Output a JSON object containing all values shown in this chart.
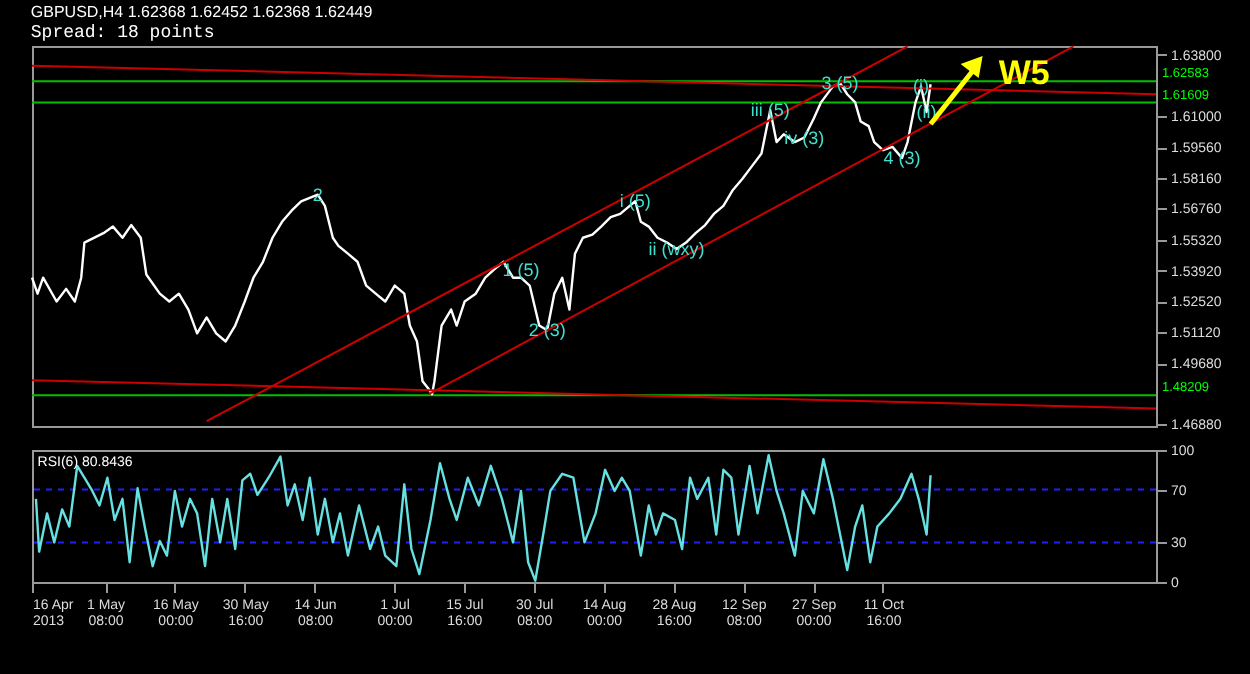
{
  "chart_data": [
    {
      "type": "line",
      "title": "GBPUSD,H4  1.62368 1.62452 1.62368 1.62449",
      "subtitle": "Spread: 18 points",
      "xlim": [
        "2013-04-16T00:00",
        "2013-12-08T00:00"
      ],
      "ylim": [
        1.468,
        1.642
      ],
      "yticks": [
        {
          "value": 1.4688,
          "label": "1.46880"
        },
        {
          "value": 1.4968,
          "label": "1.49680"
        },
        {
          "value": 1.5112,
          "label": "1.51120"
        },
        {
          "value": 1.5252,
          "label": "1.52520"
        },
        {
          "value": 1.5392,
          "label": "1.53920"
        },
        {
          "value": 1.5532,
          "label": "1.55320"
        },
        {
          "value": 1.5676,
          "label": "1.56760"
        },
        {
          "value": 1.5816,
          "label": "1.58160"
        },
        {
          "value": 1.5956,
          "label": "1.59560"
        },
        {
          "value": 1.61,
          "label": "1.61000"
        },
        {
          "value": 1.638,
          "label": "1.63800"
        }
      ],
      "tick_labels": "y",
      "series": [
        {
          "color": "#ffffff",
          "x": [
            "2013-04-16T00:00",
            "2013-04-17T04:00",
            "2013-04-18T08:00",
            "2013-04-21T04:00",
            "2013-04-23T04:00",
            "2013-04-25T00:00",
            "2013-04-26T08:00",
            "2013-04-27T00:00",
            "2013-05-01T00:00",
            "2013-05-03T00:00",
            "2013-05-05T00:00",
            "2013-05-06T20:00",
            "2013-05-08T20:00",
            "2013-05-10T00:00",
            "2013-05-12T20:00",
            "2013-05-14T20:00",
            "2013-05-16T20:00",
            "2013-05-18T20:00",
            "2013-05-20T16:00",
            "2013-05-22T16:00",
            "2013-05-24T16:00",
            "2013-05-26T16:00",
            "2013-05-28T16:00",
            "2013-05-30T16:00",
            "2013-06-01T12:00",
            "2013-06-03T12:00",
            "2013-06-05T12:00",
            "2013-06-07T12:00",
            "2013-06-09T12:00",
            "2013-06-11T12:00",
            "2013-06-15T00:00",
            "2013-06-16T12:00",
            "2013-06-18T04:00",
            "2013-06-19T08:00",
            "2013-06-21T08:00",
            "2013-06-23T08:00",
            "2013-06-25T04:00",
            "2013-06-27T04:00",
            "2013-06-29T04:00",
            "2013-07-01T04:00",
            "2013-07-03T04:00",
            "2013-07-04T08:00",
            "2013-07-05T20:00",
            "2013-07-07T00:00",
            "2013-07-08T08:00",
            "2013-07-09T00:00",
            "2013-07-09T12:00",
            "2013-07-11T00:00",
            "2013-07-13T00:00",
            "2013-07-14T04:00",
            "2013-07-15T20:00",
            "2013-07-18T04:00",
            "2013-07-20T04:00",
            "2013-07-22T00:00",
            "2013-07-24T00:00",
            "2013-07-26T00:00",
            "2013-07-27T16:00",
            "2013-07-29T12:00",
            "2013-07-31T12:00",
            "2013-08-02T04:00",
            "2013-08-03T16:00",
            "2013-08-05T08:00",
            "2013-08-06T20:00",
            "2013-08-08T00:00",
            "2013-08-09T16:00",
            "2013-08-11T16:00",
            "2013-08-13T12:00",
            "2013-08-15T12:00",
            "2013-08-17T12:00",
            "2013-08-19T12:00",
            "2013-08-20T16:00",
            "2013-08-21T20:00",
            "2013-08-23T12:00",
            "2013-08-25T08:00",
            "2013-08-27T08:00",
            "2013-08-29T08:00",
            "2013-08-31T08:00",
            "2013-09-02T08:00",
            "2013-09-04T08:00",
            "2013-09-06T04:00",
            "2013-09-08T04:00",
            "2013-09-10T04:00",
            "2013-09-12T04:00",
            "2013-09-14T04:00",
            "2013-09-16T04:00",
            "2013-09-18T00:00",
            "2013-09-19T08:00",
            "2013-09-20T20:00",
            "2013-09-23T04:00",
            "2013-09-25T04:00",
            "2013-09-27T04:00",
            "2013-09-28T16:00",
            "2013-10-01T04:00",
            "2013-10-02T16:00",
            "2013-10-04T04:00",
            "2013-10-05T20:00",
            "2013-10-07T00:00",
            "2013-10-08T16:00",
            "2013-10-09T20:00",
            "2013-10-11T16:00",
            "2013-10-13T16:00",
            "2013-10-15T16:00",
            "2013-10-16T20:00",
            "2013-10-18T12:00",
            "2013-10-19T16:00",
            "2013-10-20T20:00",
            "2013-10-21T16:00"
          ],
          "values": [
            1.5359,
            1.5286,
            1.5359,
            1.525,
            1.5308,
            1.525,
            1.5359,
            1.552,
            1.5563,
            1.5593,
            1.5542,
            1.56,
            1.5542,
            1.5374,
            1.5286,
            1.525,
            1.5286,
            1.5213,
            1.5104,
            1.5177,
            1.5104,
            1.5067,
            1.514,
            1.525,
            1.5359,
            1.5432,
            1.5542,
            1.5615,
            1.5666,
            1.5709,
            1.5739,
            1.5688,
            1.5542,
            1.5505,
            1.5469,
            1.5432,
            1.5323,
            1.5286,
            1.525,
            1.5323,
            1.5286,
            1.514,
            1.5067,
            1.4885,
            1.4848,
            1.4826,
            1.4885,
            1.514,
            1.5213,
            1.514,
            1.525,
            1.5286,
            1.5359,
            1.5396,
            1.5432,
            1.5359,
            1.5359,
            1.5323,
            1.514,
            1.5118,
            1.5286,
            1.5359,
            1.5213,
            1.5469,
            1.5542,
            1.5556,
            1.5593,
            1.5636,
            1.5651,
            1.5688,
            1.5709,
            1.5615,
            1.5593,
            1.5542,
            1.552,
            1.549,
            1.552,
            1.5563,
            1.56,
            1.5651,
            1.5688,
            1.5761,
            1.5812,
            1.587,
            1.5928,
            1.6126,
            1.598,
            1.6016,
            1.598,
            1.6001,
            1.6089,
            1.6162,
            1.6235,
            1.625,
            1.6199,
            1.6162,
            1.6074,
            1.6053,
            1.598,
            1.5943,
            1.5958,
            1.5907,
            1.598,
            1.6162,
            1.6235,
            1.6118,
            1.6245
          ]
        },
        {
          "color": "#cc0000",
          "x": [
            "2013-04-16T00:00",
            "2013-12-08T00:00"
          ],
          "values": [
            1.633,
            1.6199
          ]
        },
        {
          "color": "#cc0000",
          "x": [
            "2013-04-16T00:00",
            "2013-12-08T00:00"
          ],
          "values": [
            1.489,
            1.476
          ]
        },
        {
          "color": "#cc0000",
          "x": [
            "2013-07-08T08:00",
            "2013-11-20T16:00"
          ],
          "values": [
            1.4826,
            1.6418
          ]
        },
        {
          "color": "#cc0000",
          "x": [
            "2013-05-22T16:00",
            "2013-10-16T20:00"
          ],
          "values": [
            1.4702,
            1.6418
          ]
        }
      ],
      "ref_lines": [
        {
          "axis": "y",
          "value": 1.62583,
          "label": "1.62583",
          "color": "#00c000"
        },
        {
          "axis": "y",
          "value": 1.61609,
          "label": "1.61609",
          "color": "#00c000"
        },
        {
          "axis": "y",
          "value": 1.48209,
          "label": "1.48209",
          "color": "#00c000"
        }
      ],
      "annotations": [
        {
          "text": "2",
          "x": "2013-06-15T00:00",
          "y": 1.5739
        },
        {
          "text": "1 (5)",
          "x": "2013-07-27T16:00",
          "y": 1.5396
        },
        {
          "text": "2 (3)",
          "x": "2013-08-02T04:00",
          "y": 1.5118
        },
        {
          "text": "i (5)",
          "x": "2013-08-20T16:00",
          "y": 1.5709
        },
        {
          "text": "ii (wxy)",
          "x": "2013-08-29T08:00",
          "y": 1.549
        },
        {
          "text": "iii (5)",
          "x": "2013-09-18T00:00",
          "y": 1.6126
        },
        {
          "text": "iv (3)",
          "x": "2013-09-25T04:00",
          "y": 1.6001
        },
        {
          "text": "3 (5)",
          "x": "2013-10-02T16:00",
          "y": 1.625
        },
        {
          "text": "4 (3)",
          "x": "2013-10-15T16:00",
          "y": 1.5907
        },
        {
          "text": "(i)",
          "x": "2013-10-19T16:00",
          "y": 1.6235
        },
        {
          "text": "(ii)",
          "x": "2013-10-20T20:00",
          "y": 1.6118
        },
        "W5"
      ]
    },
    {
      "type": "line",
      "xlim": [
        "2013-04-16T00:00",
        "2013-12-08T00:00"
      ],
      "ylim": [
        0,
        100
      ],
      "yticks": [
        0,
        30,
        70,
        100
      ],
      "xticks": [
        {
          "value": "2013-04-16T00:00",
          "label": "16 Apr 2013"
        },
        {
          "value": "2013-05-01T08:00",
          "label": "1 May 08:00"
        },
        {
          "value": "2013-05-16T00:00",
          "label": "16 May 00:00"
        },
        {
          "value": "2013-05-30T16:00",
          "label": "30 May 16:00"
        },
        {
          "value": "2013-06-14T08:00",
          "label": "14 Jun 08:00"
        },
        {
          "value": "2013-07-01T00:00",
          "label": "1 Jul 00:00"
        },
        {
          "value": "2013-07-15T16:00",
          "label": "15 Jul 16:00"
        },
        {
          "value": "2013-07-30T08:00",
          "label": "30 Jul 08:00"
        },
        {
          "value": "2013-08-14T00:00",
          "label": "14 Aug 00:00"
        },
        {
          "value": "2013-08-28T16:00",
          "label": "28 Aug 16:00"
        },
        {
          "value": "2013-09-12T08:00",
          "label": "12 Sep 08:00"
        },
        {
          "value": "2013-09-27T00:00",
          "label": "27 Sep 00:00"
        },
        {
          "value": "2013-10-11T16:00",
          "label": "11 Oct 16:00"
        }
      ],
      "series": [
        {
          "color": "#66e0e0",
          "x": [
            "2013-04-16T20:00",
            "2013-04-17T12:00",
            "2013-04-19T04:00",
            "2013-04-20T16:00",
            "2013-04-22T08:00",
            "2013-04-23T20:00",
            "2013-04-25T12:00",
            "2013-04-27T00:00",
            "2013-04-28T16:00",
            "2013-04-30T04:00",
            "2013-05-01T20:00",
            "2013-05-03T08:00",
            "2013-05-05T00:00",
            "2013-05-06T12:00",
            "2013-05-08T04:00",
            "2013-05-09T16:00",
            "2013-05-11T08:00",
            "2013-05-12T20:00",
            "2013-05-14T08:00",
            "2013-05-16T00:00",
            "2013-05-17T12:00",
            "2013-05-19T04:00",
            "2013-05-20T16:00",
            "2013-05-22T08:00",
            "2013-05-23T20:00",
            "2013-05-25T12:00",
            "2013-05-27T00:00",
            "2013-05-28T16:00",
            "2013-05-30T04:00",
            "2013-05-31T20:00",
            "2013-06-02T08:00",
            "2013-06-04T16:00",
            "2013-06-07T04:00",
            "2013-06-08T16:00",
            "2013-06-10T04:00",
            "2013-06-11T20:00",
            "2013-06-13T08:00",
            "2013-06-15T00:00",
            "2013-06-16T12:00",
            "2013-06-18T04:00",
            "2013-06-19T16:00",
            "2013-06-21T08:00",
            "2013-06-23T16:00",
            "2013-06-26T00:00",
            "2013-06-27T16:00",
            "2013-06-29T04:00",
            "2013-07-01T12:00",
            "2013-07-03T04:00",
            "2013-07-04T16:00",
            "2013-07-06T08:00",
            "2013-07-08T16:00",
            "2013-07-10T16:00",
            "2013-07-12T16:00",
            "2013-07-14T04:00",
            "2013-07-16T12:00",
            "2013-07-18T20:00",
            "2013-07-21T08:00",
            "2013-07-23T16:00",
            "2013-07-26T00:00",
            "2013-07-27T16:00",
            "2013-07-29T04:00",
            "2013-07-30T16:00",
            "2013-08-01T08:00",
            "2013-08-02T20:00",
            "2013-08-05T08:00",
            "2013-08-07T16:00",
            "2013-08-10T00:00",
            "2013-08-12T08:00",
            "2013-08-14T08:00",
            "2013-08-16T08:00",
            "2013-08-17T20:00",
            "2013-08-19T12:00",
            "2013-08-21T20:00",
            "2013-08-23T12:00",
            "2013-08-25T00:00",
            "2013-08-26T12:00",
            "2013-08-29T00:00",
            "2013-08-30T12:00",
            "2013-09-01T04:00",
            "2013-09-02T16:00",
            "2013-09-05T00:00",
            "2013-09-06T16:00",
            "2013-09-08T04:00",
            "2013-09-09T20:00",
            "2013-09-11T08:00",
            "2013-09-13T16:00",
            "2013-09-15T08:00",
            "2013-09-17T16:00",
            "2013-09-19T08:00",
            "2013-09-20T20:00",
            "2013-09-23T04:00",
            "2013-09-24T20:00",
            "2013-09-27T04:00",
            "2013-09-29T04:00",
            "2013-10-01T04:00",
            "2013-10-02T16:00",
            "2013-10-04T04:00",
            "2013-10-05T20:00",
            "2013-10-07T08:00",
            "2013-10-09T00:00",
            "2013-10-10T12:00",
            "2013-10-13T00:00",
            "2013-10-15T08:00",
            "2013-10-17T16:00",
            "2013-10-19T04:00",
            "2013-10-20T20:00",
            "2013-10-21T16:00"
          ],
          "values": [
            63,
            23,
            52,
            30,
            55,
            42,
            88,
            79,
            69,
            58,
            79,
            47,
            63,
            15,
            71,
            42,
            12,
            31,
            20,
            69,
            42,
            63,
            52,
            12,
            63,
            30,
            63,
            25,
            77,
            82,
            66,
            79,
            95,
            58,
            74,
            47,
            79,
            36,
            63,
            30,
            52,
            20,
            58,
            25,
            42,
            20,
            12,
            74,
            25,
            6,
            47,
            90,
            63,
            47,
            79,
            58,
            88,
            63,
            30,
            69,
            15,
            1,
            36,
            69,
            82,
            79,
            30,
            52,
            85,
            69,
            79,
            69,
            20,
            58,
            36,
            52,
            47,
            25,
            79,
            63,
            79,
            36,
            85,
            79,
            36,
            88,
            52,
            96,
            69,
            52,
            20,
            69,
            52,
            93,
            63,
            36,
            9,
            42,
            58,
            15,
            42,
            52,
            63,
            82,
            63,
            36,
            80.8436
          ]
        }
      ],
      "ref_lines": [
        {
          "axis": "y",
          "value": 30,
          "color": "#2020ff",
          "line_style": "dashed"
        },
        {
          "axis": "y",
          "value": 70,
          "color": "#2020ff",
          "line_style": "dashed"
        }
      ],
      "annotations": [
        "RSI(6) 80.8436"
      ]
    }
  ]
}
